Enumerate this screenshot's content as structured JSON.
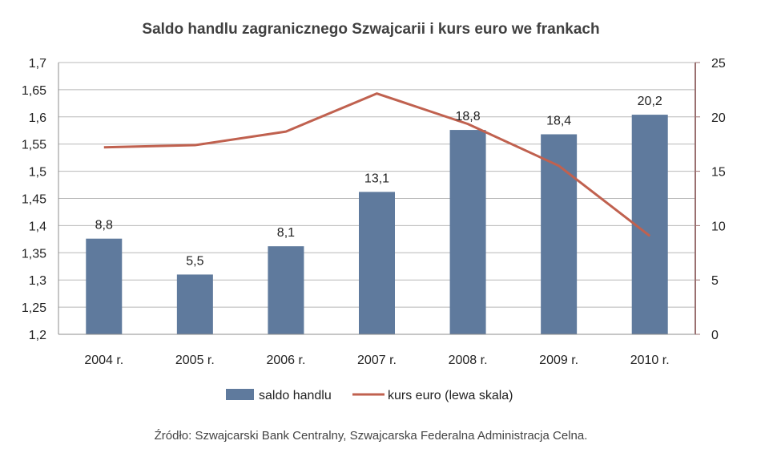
{
  "chart_data": {
    "type": "bar",
    "title": "Saldo handlu zagranicznego Szwajcarii i kurs euro we frankach",
    "categories": [
      "2004 r.",
      "2005 r.",
      "2006 r.",
      "2007 r.",
      "2008 r.",
      "2009 r.",
      "2010 r."
    ],
    "series": [
      {
        "name": "saldo handlu",
        "type": "bar",
        "axis": "right",
        "color": "#5F7A9D",
        "values": [
          8.8,
          5.5,
          8.1,
          13.1,
          18.8,
          18.4,
          20.2
        ],
        "labels": [
          "8,8",
          "5,5",
          "8,1",
          "13,1",
          "18,8",
          "18,4",
          "20,2"
        ]
      },
      {
        "name": "kurs euro (lewa skala)",
        "type": "line",
        "axis": "left",
        "color": "#C0614F",
        "values": [
          1.544,
          1.548,
          1.573,
          1.643,
          1.587,
          1.51,
          1.381
        ]
      }
    ],
    "y_left": {
      "range": [
        1.2,
        1.7
      ],
      "ticks": [
        1.2,
        1.25,
        1.3,
        1.35,
        1.4,
        1.45,
        1.5,
        1.55,
        1.6,
        1.65,
        1.7
      ],
      "tick_labels": [
        "1,2",
        "1,25",
        "1,3",
        "1,35",
        "1,4",
        "1,45",
        "1,5",
        "1,55",
        "1,6",
        "1,65",
        "1,7"
      ]
    },
    "y_right": {
      "range": [
        0,
        25
      ],
      "ticks": [
        0,
        5,
        10,
        15,
        20,
        25
      ],
      "tick_labels": [
        "0",
        "5",
        "10",
        "15",
        "20",
        "25"
      ]
    },
    "grid": true,
    "legend": "bottom",
    "source": "Źródło: Szwajcarski Bank Centralny, Szwajcarska Federalna Administracja Celna."
  }
}
